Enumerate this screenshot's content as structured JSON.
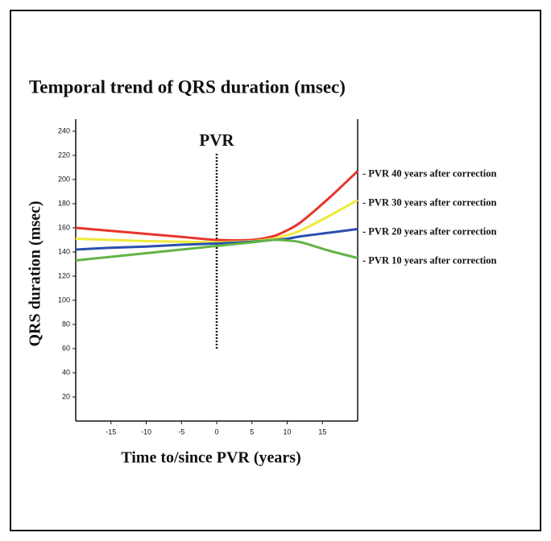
{
  "chart_data": {
    "type": "line",
    "title": "Temporal trend of QRS duration (msec)",
    "x_label": "Time to/since PVR (years)",
    "y_label": "QRS duration (msec)",
    "annotation": {
      "text": "PVR",
      "x": 0,
      "y_from": 60,
      "y_to": 222
    },
    "x": [
      -20,
      -15,
      -10,
      -5,
      0,
      5,
      8,
      10,
      12,
      16,
      20
    ],
    "series": [
      {
        "name": "- PVR 40 years after correction",
        "color": "#e8352b",
        "values": [
          160,
          157.5,
          155,
          152.5,
          150,
          150,
          153,
          158,
          165,
          185,
          207
        ]
      },
      {
        "name": "- PVR 30 years after correction",
        "color": "#eeea3a",
        "values": [
          151,
          150,
          149,
          148.5,
          148,
          149,
          151,
          154,
          158,
          170,
          183
        ]
      },
      {
        "name": "- PVR 20 years after correction",
        "color": "#2b4fae",
        "values": [
          142,
          143.5,
          144.5,
          146,
          147,
          148.5,
          150,
          151,
          153,
          156,
          159
        ]
      },
      {
        "name": "- PVR 10 years after correction",
        "color": "#63b446",
        "values": [
          133,
          136,
          139,
          142,
          145,
          148,
          150,
          149.5,
          148,
          141,
          135
        ]
      }
    ],
    "xlim": [
      -20,
      20
    ],
    "xticks": [
      -15,
      -10,
      -5,
      0,
      5,
      10,
      15
    ],
    "ylim": [
      0,
      250
    ],
    "yticks": [
      20,
      40,
      60,
      80,
      100,
      120,
      140,
      160,
      180,
      200,
      220,
      240
    ]
  }
}
